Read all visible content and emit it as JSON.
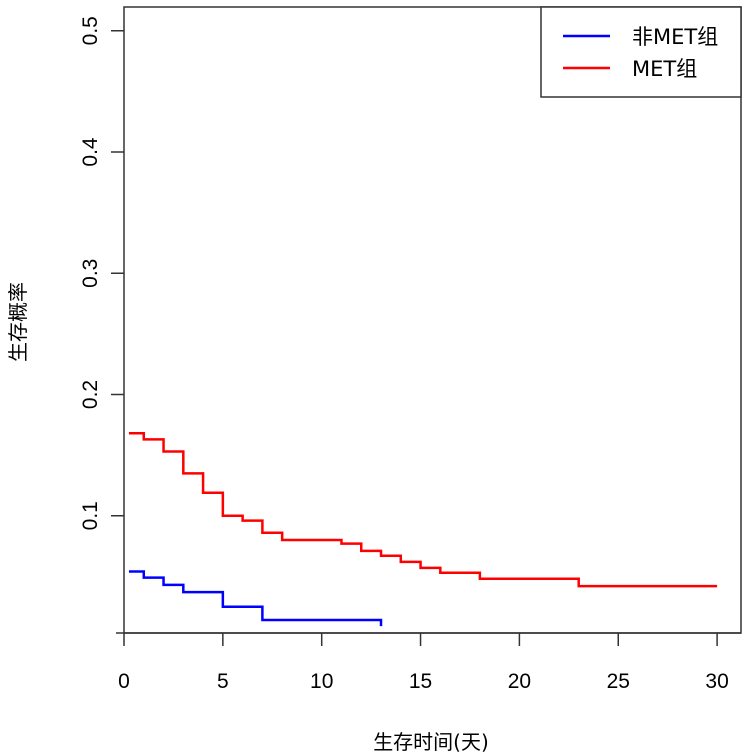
{
  "chart_data": {
    "type": "line",
    "subtype": "step (Kaplan-Meier survival curve)",
    "title": "",
    "xlabel": "生存时间(天)",
    "ylabel": "生存概率",
    "xlim": [
      0,
      31.2
    ],
    "ylim": [
      0.0,
      0.52
    ],
    "xticks": [
      0,
      5,
      10,
      15,
      20,
      25,
      30
    ],
    "xtick_labels": [
      "0",
      "5",
      "10",
      "15",
      "20",
      "25",
      "30"
    ],
    "yticks": [
      0.1,
      0.2,
      0.3,
      0.4,
      0.5
    ],
    "ytick_labels": [
      "0.1",
      "0.2",
      "0.3",
      "0.4",
      "0.5"
    ],
    "grid": false,
    "legend": {
      "position": "top-right",
      "entries": [
        {
          "label": "非MET组",
          "color": "#0000FF"
        },
        {
          "label": "MET组",
          "color": "#FF0000"
        }
      ]
    },
    "series": [
      {
        "name": "非MET组",
        "color": "#0000FF",
        "x": [
          0.25,
          1,
          2,
          3,
          5,
          7,
          13,
          13
        ],
        "y": [
          0.054,
          0.049,
          0.043,
          0.037,
          0.025,
          0.014,
          0.014,
          0.009
        ]
      },
      {
        "name": "MET组",
        "color": "#FF0000",
        "x": [
          0.25,
          1,
          2,
          3,
          4,
          5,
          6,
          7,
          8,
          11,
          12,
          13,
          14,
          15,
          16,
          18,
          23,
          30
        ],
        "y": [
          0.168,
          0.163,
          0.153,
          0.135,
          0.119,
          0.1,
          0.096,
          0.086,
          0.08,
          0.077,
          0.071,
          0.067,
          0.062,
          0.057,
          0.053,
          0.048,
          0.042,
          0.042
        ]
      }
    ]
  }
}
